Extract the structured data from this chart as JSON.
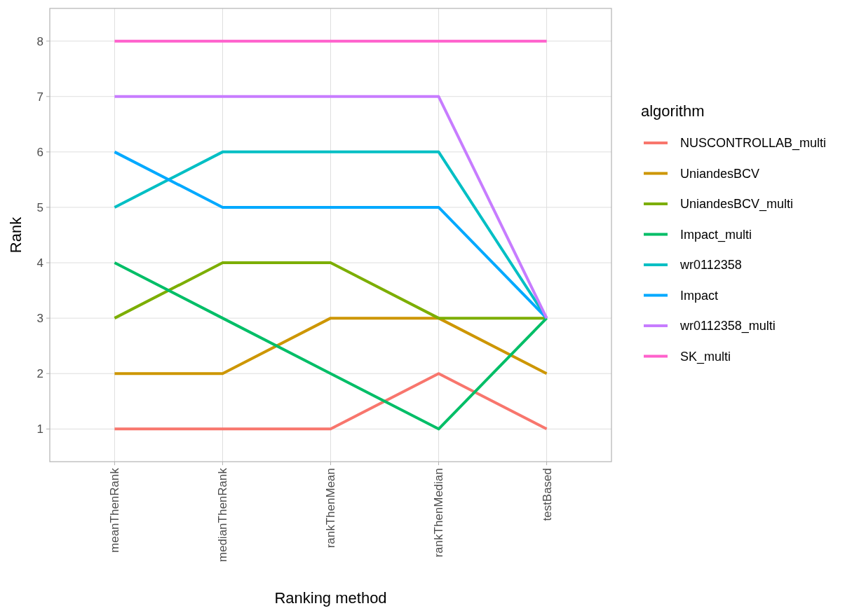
{
  "chart_data": {
    "type": "line",
    "xlabel": "Ranking method",
    "ylabel": "Rank",
    "legend_title": "algorithm",
    "categories": [
      "meanThenRank",
      "medianThenRank",
      "rankThenMean",
      "rankThenMedian",
      "testBased"
    ],
    "ylim": [
      0.41,
      8.59
    ],
    "yticks": [
      1,
      2,
      3,
      4,
      5,
      6,
      7,
      8
    ],
    "grid": true,
    "legend": "right",
    "marker": "none",
    "line_style": "solid",
    "series": [
      {
        "name": "NUSCONTROLLAB_multi",
        "color": "#f8766d",
        "values": [
          1,
          1,
          1,
          2,
          1
        ]
      },
      {
        "name": "UniandesBCV",
        "color": "#cd9600",
        "values": [
          2,
          2,
          3,
          3,
          2
        ]
      },
      {
        "name": "UniandesBCV_multi",
        "color": "#7cae00",
        "values": [
          3,
          4,
          4,
          3,
          3
        ]
      },
      {
        "name": "Impact_multi",
        "color": "#00be67",
        "values": [
          4,
          3,
          2,
          1,
          3
        ]
      },
      {
        "name": "wr0112358",
        "color": "#00bfc4",
        "values": [
          5,
          6,
          6,
          6,
          3
        ]
      },
      {
        "name": "Impact",
        "color": "#00a9ff",
        "values": [
          6,
          5,
          5,
          5,
          3
        ]
      },
      {
        "name": "wr0112358_multi",
        "color": "#c77cff",
        "values": [
          7,
          7,
          7,
          7,
          3
        ]
      },
      {
        "name": "SK_multi",
        "color": "#ff61cc",
        "values": [
          8,
          8,
          8,
          8,
          8
        ]
      }
    ]
  }
}
